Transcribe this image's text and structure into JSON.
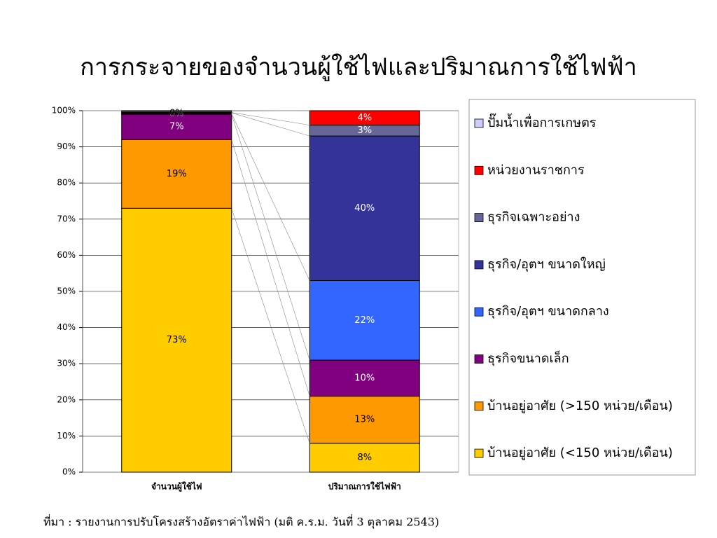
{
  "chart_data": {
    "type": "stacked_bar_100",
    "title": "การกระจายของจำนวนผู้ใช้ไฟและปริมาณการใช้ไฟฟ้า",
    "source": "ที่มา : รายงานการปรับโครงสร้างอัตราค่าไฟฟ้า (มติ ค.ร.ม. วันที่ 3 ตุลาคม 2543)",
    "categories": [
      "จำนวนผู้ใช้ไฟ",
      "ปริมาณการใช้ไฟฟ้า"
    ],
    "series": [
      {
        "name": "บ้านอยู่อาศัย (<150 หน่วย/เดือน)",
        "color": "#FFCC00",
        "values": [
          73,
          8
        ],
        "value_labels": [
          "73%",
          "8%"
        ]
      },
      {
        "name": "บ้านอยู่อาศัย (>150 หน่วย/เดือน)",
        "color": "#FF9900",
        "values": [
          19,
          13
        ],
        "value_labels": [
          "19%",
          "13%"
        ]
      },
      {
        "name": "ธุรกิจขนาดเล็ก",
        "color": "#800080",
        "values": [
          7,
          10
        ],
        "value_labels": [
          "7%",
          "10%"
        ]
      },
      {
        "name": "ธุรกิจ/อุตฯ ขนาดกลาง",
        "color": "#3366FF",
        "values": [
          0.2,
          22
        ],
        "value_labels": [
          "0%",
          "22%"
        ]
      },
      {
        "name": "ธุรกิจ/อุตฯ ขนาดใหญ่",
        "color": "#333399",
        "values": [
          0.2,
          40
        ],
        "value_labels": [
          "0%",
          "40%"
        ]
      },
      {
        "name": "ธุรกิจเฉพาะอย่าง",
        "color": "#666699",
        "values": [
          0.1,
          3
        ],
        "value_labels": [
          "0%",
          "3%"
        ]
      },
      {
        "name": "หน่วยงานราชการ",
        "color": "#FF0000",
        "values": [
          0.4,
          4
        ],
        "value_labels": [
          "0%",
          "4%"
        ]
      },
      {
        "name": "ปั๊มน้ำเพื่อการเกษตร",
        "color": "#CCCCFF",
        "values": [
          0.1,
          0
        ],
        "value_labels": [
          "0%",
          null
        ]
      }
    ],
    "ylim": [
      0,
      100
    ],
    "yticks": [
      {
        "value": 0,
        "label": "0%"
      },
      {
        "value": 10,
        "label": "10%"
      },
      {
        "value": 20,
        "label": "20%"
      },
      {
        "value": 30,
        "label": "30%"
      },
      {
        "value": 40,
        "label": "40%"
      },
      {
        "value": 50,
        "label": "50%"
      },
      {
        "value": 60,
        "label": "60%"
      },
      {
        "value": 70,
        "label": "70%"
      },
      {
        "value": 80,
        "label": "80%"
      },
      {
        "value": 90,
        "label": "90%"
      },
      {
        "value": 100,
        "label": "100%"
      }
    ],
    "grid": true
  }
}
